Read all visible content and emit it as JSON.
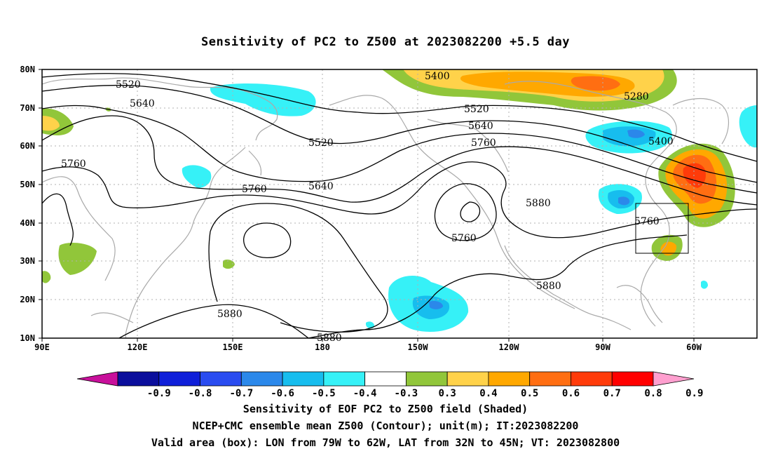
{
  "title": "Sensitivity of PC2 to Z500 at 2023082200 +5.5 day",
  "lon_ticks": [
    "90E",
    "120E",
    "150E",
    "180",
    "150W",
    "120W",
    "90W",
    "60W"
  ],
  "lat_ticks": [
    "80N",
    "70N",
    "60N",
    "50N",
    "40N",
    "30N",
    "20N",
    "10N"
  ],
  "contour_labels": [
    "5520",
    "5640",
    "5760",
    "5400",
    "5520",
    "5640",
    "5760",
    "5280",
    "5400",
    "5520",
    "5640",
    "5760",
    "5760",
    "5880",
    "5760",
    "5880",
    "5880",
    "5880"
  ],
  "colorbar": {
    "labels": [
      "-0.9",
      "-0.8",
      "-0.7",
      "-0.6",
      "-0.5",
      "-0.4",
      "-0.3",
      "0.3",
      "0.4",
      "0.5",
      "0.6",
      "0.7",
      "0.8",
      "0.9"
    ],
    "colors": [
      "#c8109b",
      "#0b0e9c",
      "#0f1fd9",
      "#2a4cf0",
      "#2b88ea",
      "#17bdee",
      "#36f1f7",
      "#ffffff",
      "#91c63a",
      "#ffd24a",
      "#ffa800",
      "#ff6e12",
      "#ff3b0a",
      "#ff0000",
      "#ff9fcf"
    ]
  },
  "valid_box": {
    "lon_min": -79,
    "lon_max": -62,
    "lat_min": 32,
    "lat_max": 45
  },
  "captions": {
    "line1": "Sensitivity of EOF PC2 to Z500 field (Shaded)",
    "line2": "NCEP+CMC ensemble mean Z500 (Contour); unit(m); IT:2023082200",
    "line3": "Valid area (box): LON from 79W to 62W, LAT from 32N to 45N; VT: 2023082800"
  }
}
